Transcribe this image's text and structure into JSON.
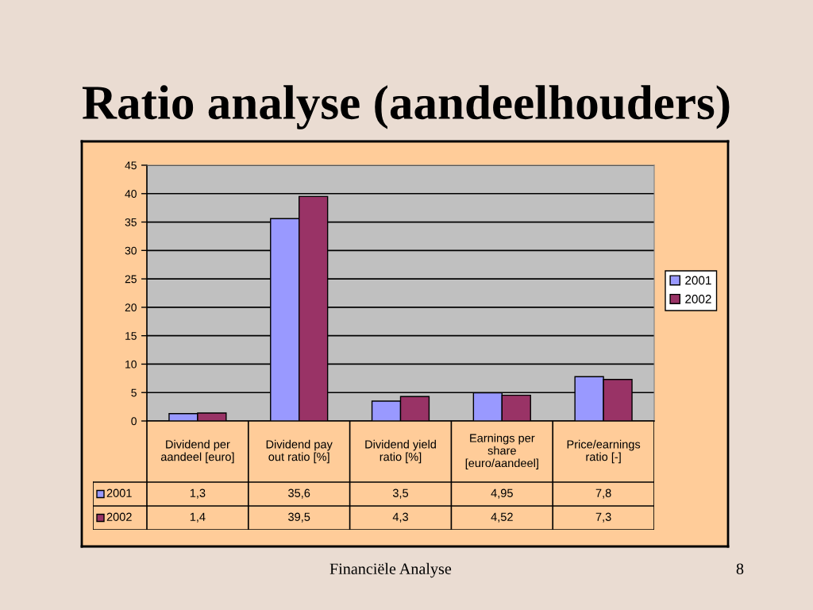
{
  "chart_data": {
    "type": "bar",
    "title": "Ratio analyse (aandeelhouders)",
    "categories": [
      "Dividend per\naandeel [euro]",
      "Dividend pay\nout ratio [%]",
      "Dividend yield\nratio [%]",
      "Earnings per\nshare\n[euro/aandeel]",
      "Price/earnings\nratio [-]"
    ],
    "series": [
      {
        "name": "2001",
        "color": "#9999ff",
        "values": [
          1.3,
          35.6,
          3.5,
          4.95,
          7.8
        ],
        "value_labels": [
          "1,3",
          "35,6",
          "3,5",
          "4,95",
          "7,8"
        ]
      },
      {
        "name": "2002",
        "color": "#993366",
        "values": [
          1.4,
          39.5,
          4.3,
          4.52,
          7.3
        ],
        "value_labels": [
          "1,4",
          "39,5",
          "4,3",
          "4,52",
          "7,3"
        ]
      }
    ],
    "ylim": [
      0,
      45
    ],
    "yticks": [
      0,
      5,
      10,
      15,
      20,
      25,
      30,
      35,
      40,
      45
    ],
    "grid": "y",
    "legend": "right",
    "annotations": [
      "Financiële Analyse",
      "8"
    ]
  }
}
